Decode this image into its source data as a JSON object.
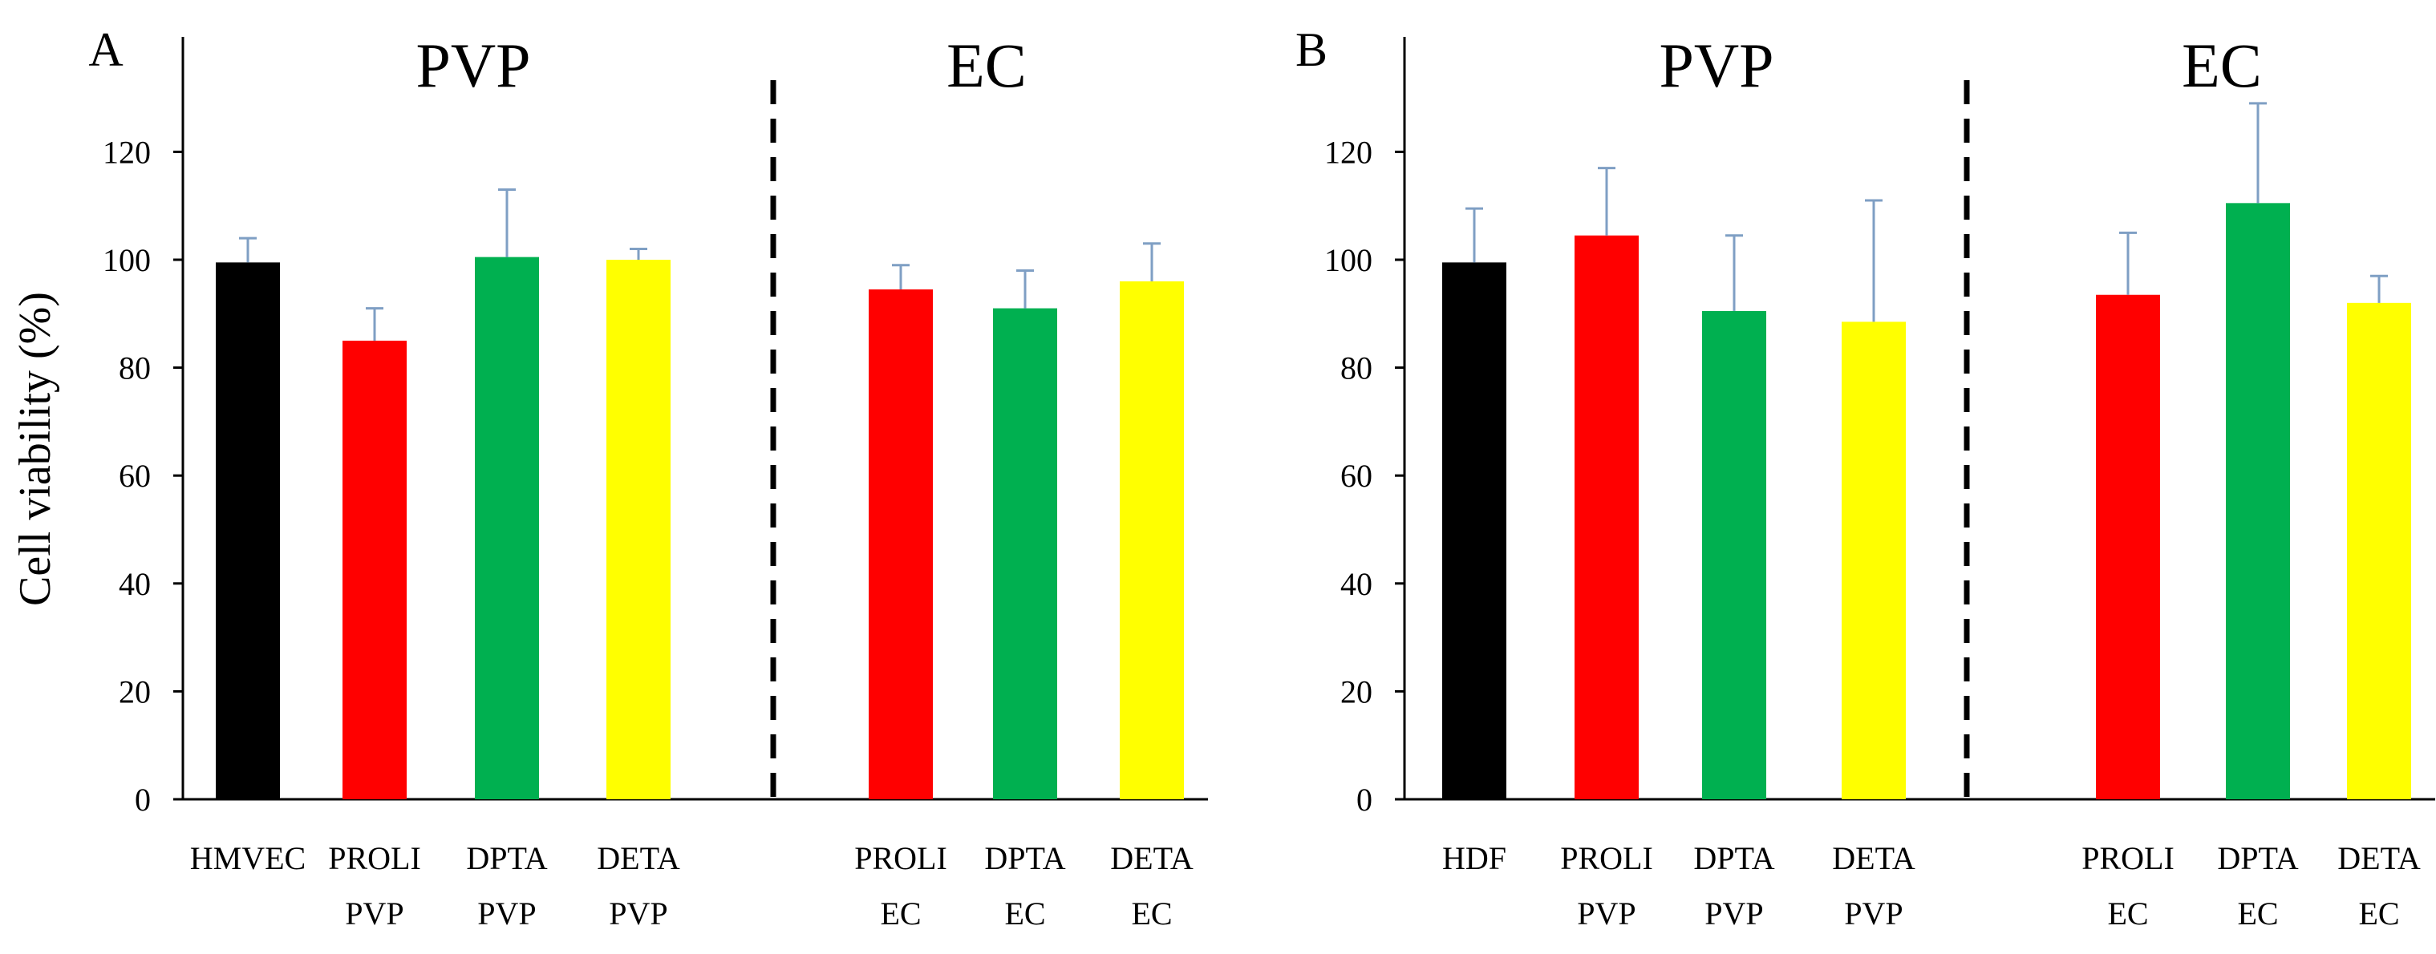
{
  "ylabel": "Cell viability  (%)",
  "chart_data": [
    {
      "type": "bar",
      "panel": "A",
      "ylabel": "Cell viability  (%)",
      "ylim": [
        0,
        130
      ],
      "yticks": [
        0,
        20,
        40,
        60,
        80,
        100,
        120
      ],
      "groups": [
        {
          "label": "PVP",
          "categories": [
            0,
            1,
            2,
            3
          ]
        },
        {
          "label": "EC",
          "categories": [
            4,
            5,
            6
          ]
        }
      ],
      "categories": [
        {
          "line1": "HMVEC",
          "line2": "",
          "value": 99.5,
          "error": 4.5,
          "color": "#000000"
        },
        {
          "line1": "PROLI",
          "line2": "PVP",
          "value": 85,
          "error": 6,
          "color": "#ff0000"
        },
        {
          "line1": "DPTA",
          "line2": "PVP",
          "value": 100.5,
          "error": 12.5,
          "color": "#00b050"
        },
        {
          "line1": "DETA",
          "line2": "PVP",
          "value": 100,
          "error": 2,
          "color": "#ffff00"
        },
        {
          "line1": "PROLI",
          "line2": "EC",
          "value": 94.5,
          "error": 4.5,
          "color": "#ff0000"
        },
        {
          "line1": "DPTA",
          "line2": "EC",
          "value": 91,
          "error": 7,
          "color": "#00b050"
        },
        {
          "line1": "DETA",
          "line2": "EC",
          "value": 96,
          "error": 7,
          "color": "#ffff00"
        }
      ]
    },
    {
      "type": "bar",
      "panel": "B",
      "ylabel": "",
      "ylim": [
        0,
        130
      ],
      "yticks": [
        0,
        20,
        40,
        60,
        80,
        100,
        120
      ],
      "groups": [
        {
          "label": "PVP",
          "categories": [
            0,
            1,
            2,
            3
          ]
        },
        {
          "label": "EC",
          "categories": [
            4,
            5,
            6
          ]
        }
      ],
      "categories": [
        {
          "line1": "HDF",
          "line2": "",
          "value": 99.5,
          "error": 10,
          "color": "#000000"
        },
        {
          "line1": "PROLI",
          "line2": "PVP",
          "value": 104.5,
          "error": 12.5,
          "color": "#ff0000"
        },
        {
          "line1": "DPTA",
          "line2": "PVP",
          "value": 90.5,
          "error": 14,
          "color": "#00b050"
        },
        {
          "line1": "DETA",
          "line2": "PVP",
          "value": 88.5,
          "error": 22.5,
          "color": "#ffff00"
        },
        {
          "line1": "PROLI",
          "line2": "EC",
          "value": 93.5,
          "error": 11.5,
          "color": "#ff0000"
        },
        {
          "line1": "DPTA",
          "line2": "EC",
          "value": 110.5,
          "error": 18.5,
          "color": "#00b050"
        },
        {
          "line1": "DETA",
          "line2": "EC",
          "value": 92,
          "error": 5,
          "color": "#ffff00"
        }
      ]
    }
  ]
}
